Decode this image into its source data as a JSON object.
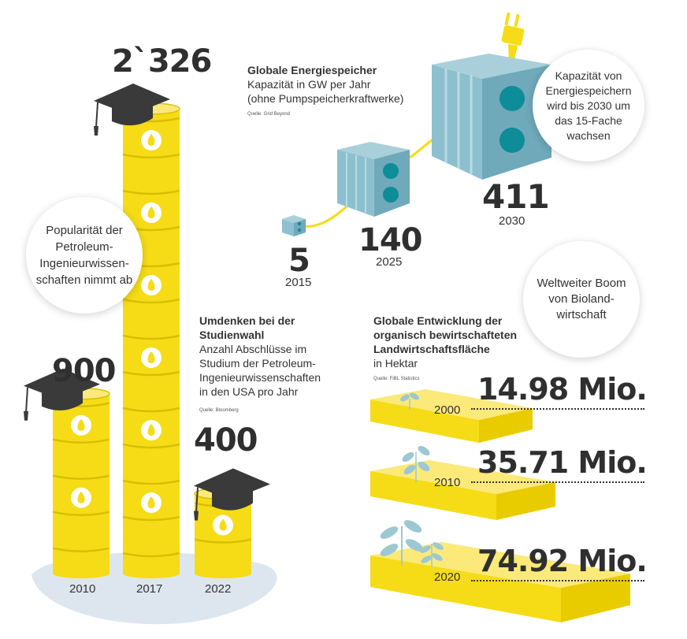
{
  "degrees": {
    "bubble_lines": [
      "Popularität der",
      "Petroleum-",
      "Ingenieurwissen-",
      "schaften nimmt ab"
    ],
    "title_lines": [
      "Umdenken bei der",
      "Studienwahl"
    ],
    "subtitle_lines": [
      "Anzahl Abschlüsse im",
      "Studium der Petroleum-",
      "Ingenieurwissenschaften",
      "in den USA pro Jahr"
    ],
    "source": "Quelle: Bloomberg",
    "columns": [
      {
        "year": "2010",
        "value_label": "900",
        "value": 900
      },
      {
        "year": "2017",
        "value_label": "2`326",
        "value": 2326
      },
      {
        "year": "2022",
        "value_label": "400",
        "value": 400
      }
    ],
    "colors": {
      "barrel": "#f5dc16",
      "barrel_dark": "#d9bf00",
      "cap": "#3a3a3a",
      "ground": "#dde6ee"
    },
    "icons": [
      "barrel-icon",
      "oil-drop-icon",
      "graduation-cap-icon"
    ]
  },
  "storage": {
    "title": "Globale Energiespeicher",
    "subtitle_lines": [
      "Kapazität in GW per Jahr",
      "(ohne Pumpspeicherkraftwerke)"
    ],
    "source": "Quelle: Grid Beyond",
    "bubble_lines": [
      "Kapazität von",
      "Energiespeichern",
      "wird bis 2030 um",
      "das 15-Fache",
      "wachsen"
    ],
    "points": [
      {
        "year": "2015",
        "value_label": "5",
        "value": 5
      },
      {
        "year": "2025",
        "value_label": "140",
        "value": 140
      },
      {
        "year": "2030",
        "value_label": "411",
        "value": 411
      }
    ],
    "colors": {
      "box": "#8cc0cf",
      "box_dark": "#6fa9ba",
      "dots": "#0e8c97",
      "cable": "#f5dc16"
    },
    "icons": [
      "battery-box-icon",
      "plug-icon"
    ]
  },
  "organic": {
    "bubble_lines": [
      "Weltweiter Boom",
      "von Bioland-",
      "wirtschaft"
    ],
    "title_lines": [
      "Globale Entwicklung der",
      "organisch bewirtschafteten",
      "Landwirtschaftsfläche"
    ],
    "unit": "in Hektar",
    "source": "Quelle: FiBL Statistics",
    "rows": [
      {
        "year": "2000",
        "value_label": "14.98 Mio.",
        "value": 14.98
      },
      {
        "year": "2010",
        "value_label": "35.71 Mio.",
        "value": 35.71
      },
      {
        "year": "2020",
        "value_label": "74.92 Mio.",
        "value": 74.92
      }
    ],
    "colors": {
      "field_top": "#fbe97a",
      "field_side": "#f5dc16",
      "plant": "#9cc8d4"
    },
    "icons": [
      "field-slab-icon",
      "sprout-icon"
    ]
  }
}
